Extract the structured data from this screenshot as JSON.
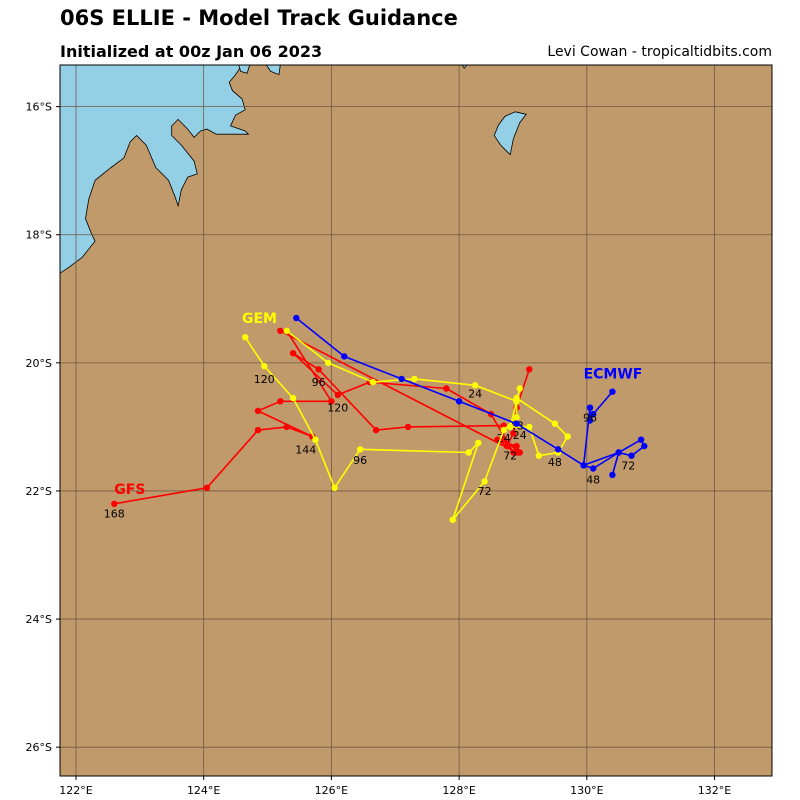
{
  "header": {
    "title": "06S ELLIE - Model Track Guidance",
    "subtitle": "Initialized at 00z Jan 06 2023",
    "credit": "Levi Cowan - tropicaltidbits.com"
  },
  "colors": {
    "land": "#c19a6b",
    "water": "#94d0e5",
    "grid": "#6e5a44",
    "gfs": "#ff0000",
    "gem": "#ffff00",
    "ecmwf": "#0000ff"
  },
  "chart_data": {
    "type": "map-tracks",
    "xlim": [
      121.75,
      132.9
    ],
    "ylim": [
      -26.45,
      -15.35
    ],
    "x_ticks": [
      {
        "v": 122,
        "label": "122°E"
      },
      {
        "v": 124,
        "label": "124°E"
      },
      {
        "v": 126,
        "label": "126°E"
      },
      {
        "v": 128,
        "label": "128°E"
      },
      {
        "v": 130,
        "label": "130°E"
      },
      {
        "v": 132,
        "label": "132°E"
      }
    ],
    "y_ticks": [
      {
        "v": -16,
        "label": "16°S"
      },
      {
        "v": -18,
        "label": "18°S"
      },
      {
        "v": -20,
        "label": "20°S"
      },
      {
        "v": -22,
        "label": "22°S"
      },
      {
        "v": -24,
        "label": "24°S"
      },
      {
        "v": -26,
        "label": "26°S"
      }
    ],
    "grid": true,
    "water_polygons": [
      [
        [
          121.75,
          -15.35
        ],
        [
          124.6,
          -15.35
        ],
        [
          124.5,
          -15.5
        ],
        [
          124.4,
          -15.62
        ],
        [
          124.45,
          -15.75
        ],
        [
          124.6,
          -15.88
        ],
        [
          124.65,
          -16.05
        ],
        [
          124.5,
          -16.13
        ],
        [
          124.42,
          -16.3
        ],
        [
          124.65,
          -16.38
        ],
        [
          124.7,
          -16.43
        ],
        [
          124.4,
          -16.43
        ],
        [
          124.2,
          -16.43
        ],
        [
          124.05,
          -16.35
        ],
        [
          123.95,
          -16.38
        ],
        [
          123.85,
          -16.48
        ],
        [
          123.75,
          -16.35
        ],
        [
          123.6,
          -16.2
        ],
        [
          123.5,
          -16.3
        ],
        [
          123.5,
          -16.45
        ],
        [
          123.65,
          -16.6
        ],
        [
          123.85,
          -16.85
        ],
        [
          123.9,
          -17.05
        ],
        [
          123.75,
          -17.1
        ],
        [
          123.65,
          -17.3
        ],
        [
          123.6,
          -17.55
        ],
        [
          123.55,
          -17.4
        ],
        [
          123.45,
          -17.15
        ],
        [
          123.25,
          -16.95
        ],
        [
          123.1,
          -16.6
        ],
        [
          122.95,
          -16.45
        ],
        [
          122.85,
          -16.55
        ],
        [
          122.75,
          -16.8
        ],
        [
          122.55,
          -16.95
        ],
        [
          122.3,
          -17.15
        ],
        [
          122.2,
          -17.45
        ],
        [
          122.15,
          -17.75
        ],
        [
          122.25,
          -18.0
        ],
        [
          122.3,
          -18.1
        ],
        [
          122.1,
          -18.35
        ],
        [
          121.9,
          -18.5
        ],
        [
          121.75,
          -18.6
        ]
      ],
      [
        [
          124.98,
          -15.35
        ],
        [
          125.2,
          -15.35
        ],
        [
          125.18,
          -15.5
        ],
        [
          125.05,
          -15.45
        ]
      ],
      [
        [
          124.55,
          -15.35
        ],
        [
          124.72,
          -15.35
        ],
        [
          124.68,
          -15.48
        ],
        [
          124.58,
          -15.45
        ]
      ],
      [
        [
          128.05,
          -15.35
        ],
        [
          128.12,
          -15.35
        ],
        [
          128.08,
          -15.4
        ]
      ],
      [
        [
          128.72,
          -16.15
        ],
        [
          128.88,
          -16.08
        ],
        [
          129.05,
          -16.12
        ],
        [
          128.95,
          -16.25
        ],
        [
          128.85,
          -16.5
        ],
        [
          128.8,
          -16.75
        ],
        [
          128.65,
          -16.6
        ],
        [
          128.55,
          -16.45
        ],
        [
          128.62,
          -16.28
        ]
      ]
    ],
    "series": [
      {
        "name": "GFS",
        "color": "#ff0000",
        "label_pos": [
          122.6,
          -21.97
        ],
        "points": [
          [
            129.1,
            -20.1
          ],
          [
            128.9,
            -20.7
          ],
          [
            128.85,
            -21.1
          ],
          [
            128.75,
            -21.3
          ],
          [
            128.6,
            -21.2
          ],
          [
            128.9,
            -21.3
          ],
          [
            128.95,
            -21.4
          ],
          [
            128.7,
            -21.2
          ],
          [
            128.7,
            -21.0
          ],
          [
            128.7,
            -20.98
          ],
          [
            127.2,
            -21.0
          ],
          [
            126.7,
            -21.05
          ],
          [
            125.8,
            -20.1
          ],
          [
            125.4,
            -19.85
          ],
          [
            126.1,
            -20.5
          ],
          [
            126.6,
            -20.3
          ],
          [
            127.8,
            -20.4
          ],
          [
            128.5,
            -20.8
          ],
          [
            128.85,
            -21.4
          ],
          [
            128.9,
            -21.4
          ],
          [
            125.2,
            -19.5
          ],
          [
            125.3,
            -19.5
          ],
          [
            126.0,
            -20.6
          ],
          [
            125.2,
            -20.6
          ],
          [
            124.85,
            -20.75
          ],
          [
            125.7,
            -21.15
          ],
          [
            125.3,
            -21.0
          ],
          [
            124.85,
            -21.05
          ],
          [
            124.05,
            -21.95
          ],
          [
            122.6,
            -22.2
          ]
        ],
        "labels": [
          {
            "text": "24",
            "at": [
              128.7,
              -21.17
            ]
          },
          {
            "text": "48",
            "at": [
              128.9,
              -20.98
            ]
          },
          {
            "text": "72",
            "at": [
              128.8,
              -21.45
            ]
          },
          {
            "text": "96",
            "at": [
              125.8,
              -20.3
            ]
          },
          {
            "text": "120",
            "at": [
              126.1,
              -20.7
            ]
          },
          {
            "text": "144",
            "at": [
              125.6,
              -21.35
            ]
          },
          {
            "text": "168",
            "at": [
              122.6,
              -22.35
            ]
          }
        ]
      },
      {
        "name": "GEM",
        "color": "#ffff00",
        "label_pos": [
          124.6,
          -19.3
        ],
        "points": [
          [
            125.3,
            -19.5
          ],
          [
            125.95,
            -20.0
          ],
          [
            126.65,
            -20.3
          ],
          [
            127.3,
            -20.25
          ],
          [
            128.25,
            -20.35
          ],
          [
            128.9,
            -20.6
          ],
          [
            128.95,
            -20.4
          ],
          [
            128.8,
            -21.0
          ],
          [
            129.1,
            -21.0
          ],
          [
            129.25,
            -21.45
          ],
          [
            129.55,
            -21.4
          ],
          [
            129.7,
            -21.15
          ],
          [
            129.5,
            -20.95
          ],
          [
            128.9,
            -20.55
          ],
          [
            128.9,
            -20.85
          ],
          [
            128.7,
            -21.05
          ],
          [
            128.4,
            -21.85
          ],
          [
            127.9,
            -22.45
          ],
          [
            128.3,
            -21.25
          ],
          [
            128.15,
            -21.4
          ],
          [
            126.45,
            -21.35
          ],
          [
            126.05,
            -21.95
          ],
          [
            125.75,
            -21.2
          ],
          [
            125.4,
            -20.55
          ],
          [
            124.95,
            -20.05
          ],
          [
            124.65,
            -19.6
          ]
        ],
        "labels": [
          {
            "text": "24",
            "at": [
              128.25,
              -20.48
            ]
          },
          {
            "text": "48",
            "at": [
              129.5,
              -21.55
            ]
          },
          {
            "text": "72",
            "at": [
              128.4,
              -22.0
            ]
          },
          {
            "text": "96",
            "at": [
              126.45,
              -21.52
            ]
          },
          {
            "text": "120",
            "at": [
              124.95,
              -20.25
            ]
          }
        ]
      },
      {
        "name": "ECMWF",
        "color": "#0000ff",
        "label_pos": [
          129.95,
          -20.17
        ],
        "points": [
          [
            125.45,
            -19.3
          ],
          [
            126.2,
            -19.9
          ],
          [
            127.1,
            -20.25
          ],
          [
            128.0,
            -20.6
          ],
          [
            128.9,
            -20.95
          ],
          [
            129.55,
            -21.35
          ],
          [
            129.95,
            -21.6
          ],
          [
            130.1,
            -21.65
          ],
          [
            130.5,
            -21.4
          ],
          [
            130.7,
            -21.45
          ],
          [
            130.9,
            -21.3
          ],
          [
            130.85,
            -21.2
          ],
          [
            130.5,
            -21.4
          ],
          [
            130.4,
            -21.75
          ],
          [
            130.5,
            -21.4
          ],
          [
            129.95,
            -21.6
          ],
          [
            130.05,
            -20.7
          ],
          [
            130.05,
            -20.9
          ],
          [
            130.1,
            -20.8
          ],
          [
            130.4,
            -20.45
          ]
        ],
        "labels": [
          {
            "text": "24",
            "at": [
              128.95,
              -21.13
            ]
          },
          {
            "text": "48",
            "at": [
              130.1,
              -21.82
            ]
          },
          {
            "text": "72",
            "at": [
              130.65,
              -21.6
            ]
          },
          {
            "text": "96",
            "at": [
              130.05,
              -20.85
            ]
          }
        ]
      }
    ]
  }
}
